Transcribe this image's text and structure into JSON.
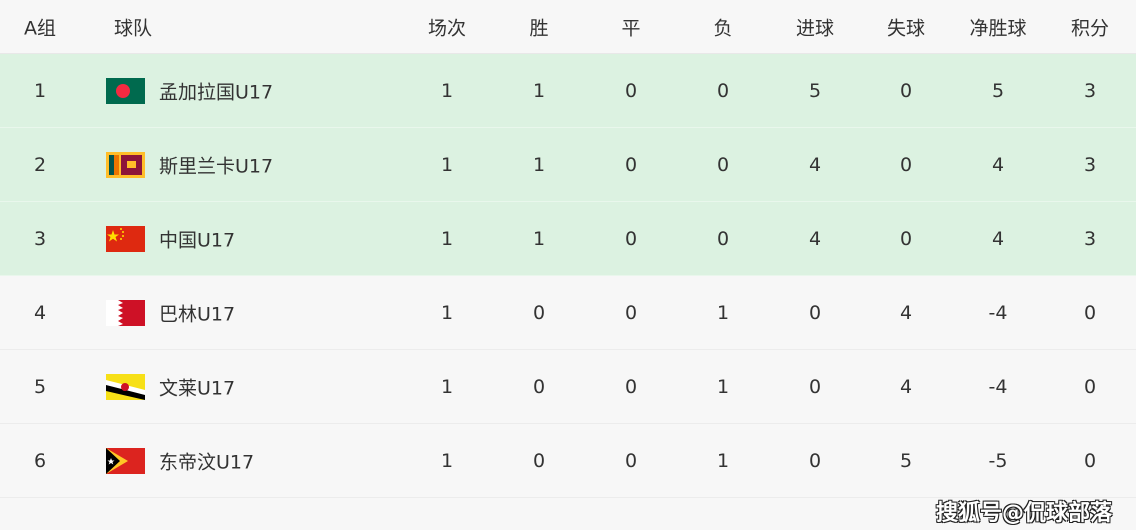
{
  "header": {
    "group": "A组",
    "team": "球队",
    "played": "场次",
    "won": "胜",
    "drawn": "平",
    "lost": "负",
    "gf": "进球",
    "ga": "失球",
    "gd": "净胜球",
    "pts": "积分"
  },
  "rows": [
    {
      "rank": "1",
      "team": "孟加拉国U17",
      "flag": "bangladesh-flag",
      "played": "1",
      "won": "1",
      "drawn": "0",
      "lost": "0",
      "gf": "5",
      "ga": "0",
      "gd": "5",
      "pts": "3"
    },
    {
      "rank": "2",
      "team": "斯里兰卡U17",
      "flag": "sri-lanka-flag",
      "played": "1",
      "won": "1",
      "drawn": "0",
      "lost": "0",
      "gf": "4",
      "ga": "0",
      "gd": "4",
      "pts": "3"
    },
    {
      "rank": "3",
      "team": "中国U17",
      "flag": "china-flag",
      "played": "1",
      "won": "1",
      "drawn": "0",
      "lost": "0",
      "gf": "4",
      "ga": "0",
      "gd": "4",
      "pts": "3"
    },
    {
      "rank": "4",
      "team": "巴林U17",
      "flag": "bahrain-flag",
      "played": "1",
      "won": "0",
      "drawn": "0",
      "lost": "1",
      "gf": "0",
      "ga": "4",
      "gd": "-4",
      "pts": "0"
    },
    {
      "rank": "5",
      "team": "文莱U17",
      "flag": "brunei-flag",
      "played": "1",
      "won": "0",
      "drawn": "0",
      "lost": "1",
      "gf": "0",
      "ga": "4",
      "gd": "-4",
      "pts": "0"
    },
    {
      "rank": "6",
      "team": "东帝汶U17",
      "flag": "timor-leste-flag",
      "played": "1",
      "won": "0",
      "drawn": "0",
      "lost": "1",
      "gf": "0",
      "ga": "5",
      "gd": "-5",
      "pts": "0"
    }
  ],
  "highlight_color": "#dcf2e1",
  "watermark": "搜狐号@侃球部落"
}
